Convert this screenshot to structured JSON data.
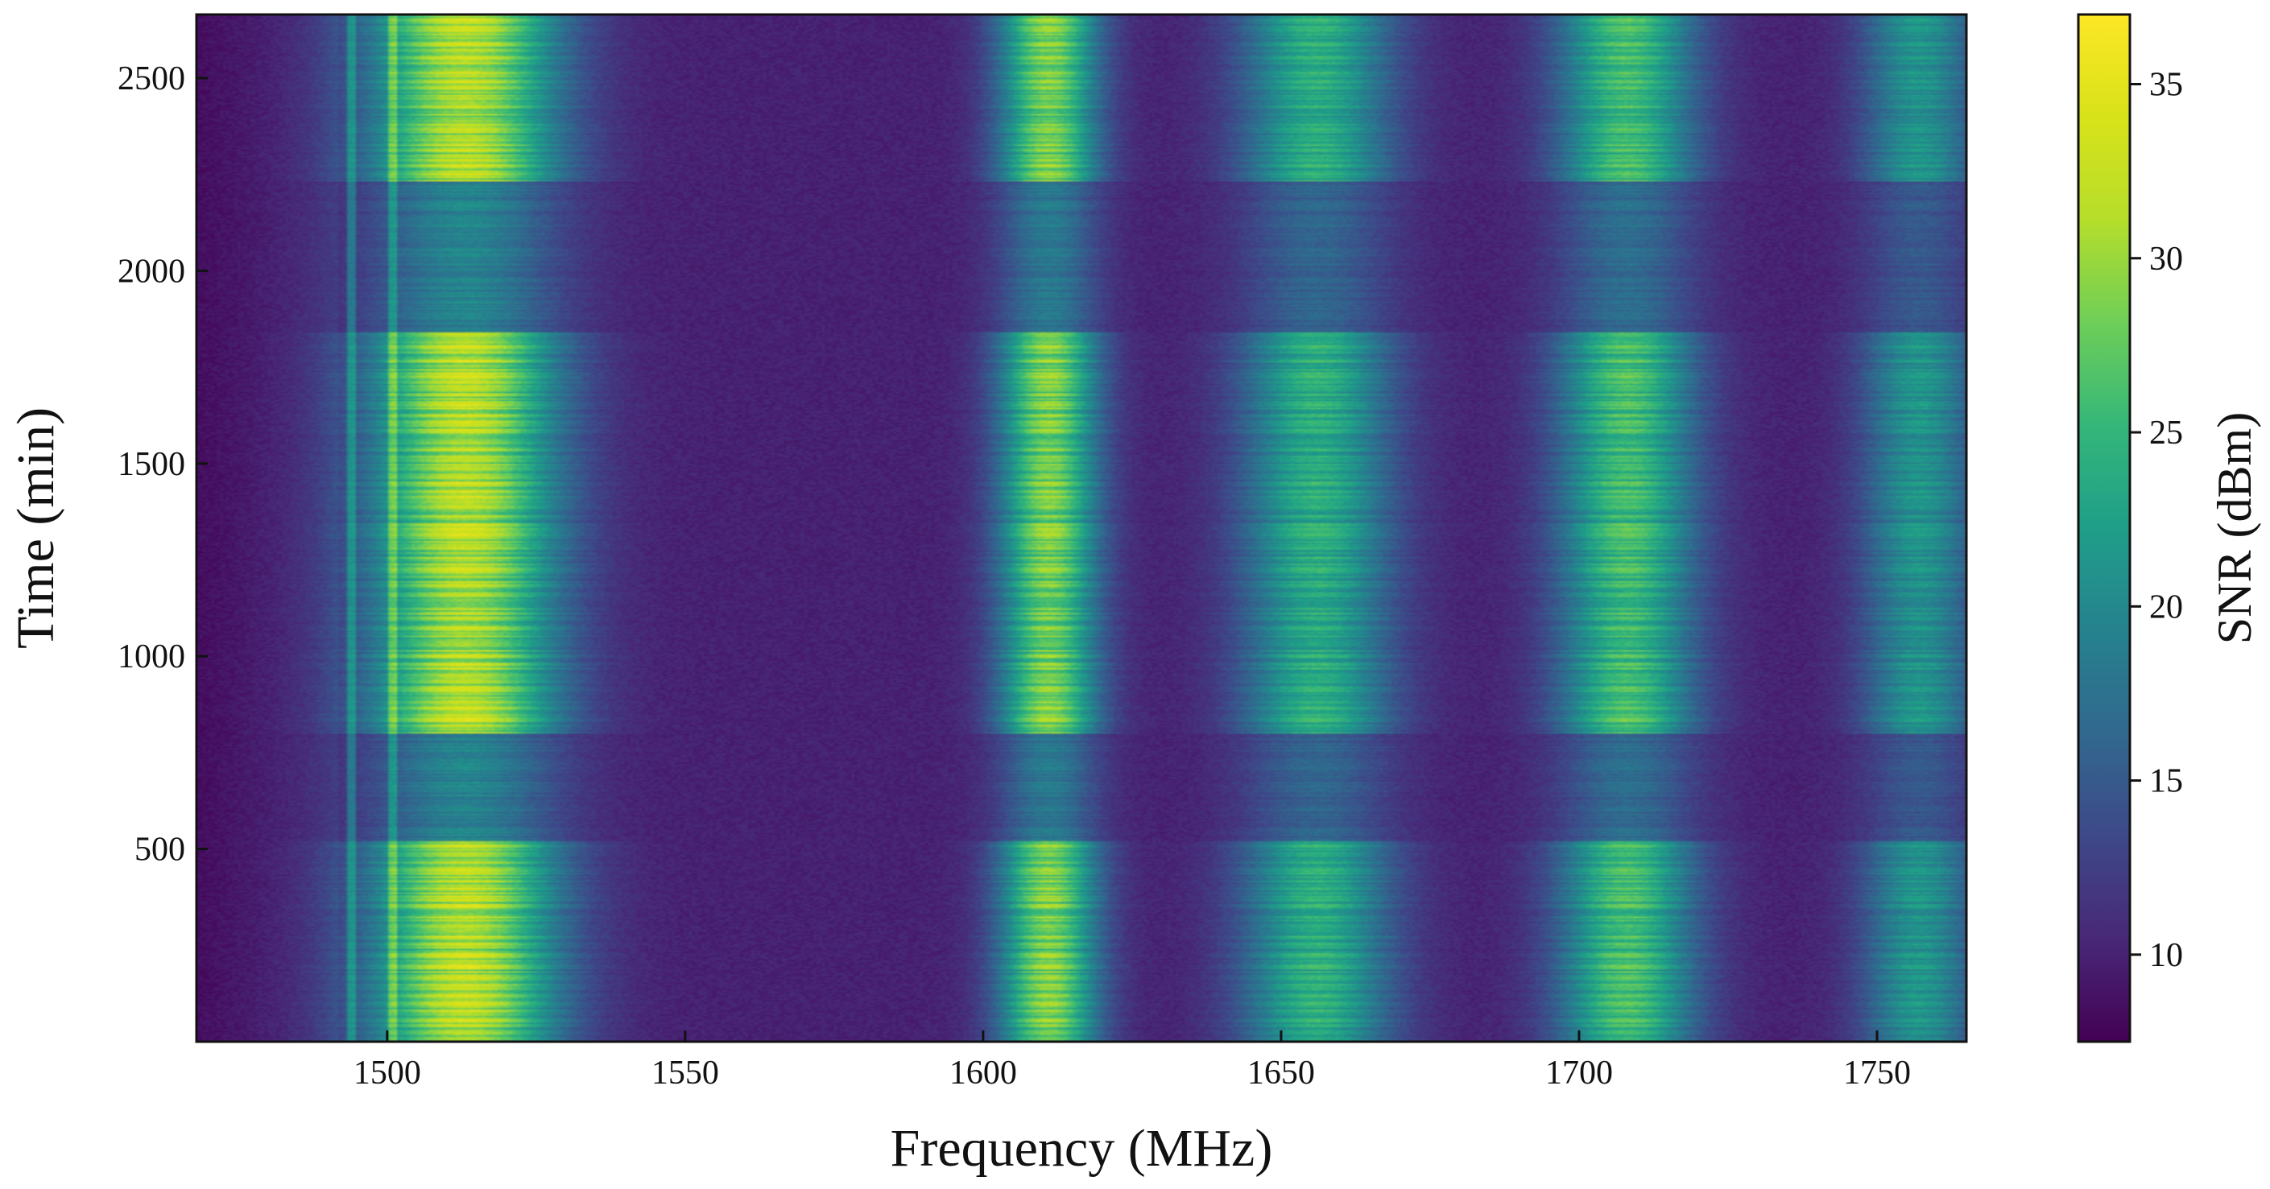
{
  "chart_data": {
    "type": "heatmap",
    "xlabel": "Frequency (MHz)",
    "ylabel": "Time (min)",
    "colorbar_label": "SNR (dBm)",
    "xlim": [
      1468,
      1765
    ],
    "ylim": [
      0,
      2665
    ],
    "clim": [
      7.5,
      37
    ],
    "colormap": "viridis",
    "x_ticks": [
      1500,
      1550,
      1600,
      1650,
      1700,
      1750
    ],
    "x_tick_labels": [
      "1500",
      "1550",
      "1600",
      "1650",
      "1700",
      "1750"
    ],
    "y_ticks": [
      500,
      1000,
      1500,
      2000,
      2500
    ],
    "y_tick_labels": [
      "500",
      "1000",
      "1500",
      "2000",
      "2500"
    ],
    "colorbar_ticks": [
      10,
      15,
      20,
      25,
      30,
      35
    ],
    "colorbar_tick_labels": [
      "10",
      "15",
      "20",
      "25",
      "30",
      "35"
    ],
    "frequency_peaks_mhz": [
      {
        "center": 1513,
        "width": 15,
        "peak_snr": 33
      },
      {
        "center": 1611,
        "width": 8,
        "peak_snr": 30
      },
      {
        "center": 1656,
        "width": 12,
        "peak_snr": 25
      },
      {
        "center": 1708,
        "width": 11,
        "peak_snr": 27
      },
      {
        "center": 1757,
        "width": 9,
        "peak_snr": 22
      }
    ],
    "narrow_lines_mhz": [
      1494,
      1501
    ],
    "baseline_snr": 10,
    "weak_time_bands_min": [
      [
        520,
        800
      ],
      [
        1840,
        2230
      ]
    ]
  }
}
